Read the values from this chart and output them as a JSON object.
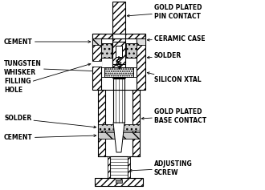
{
  "bg_color": "#ffffff",
  "line_color": "#000000",
  "labels": {
    "cement_top": "CEMENT",
    "gold_plated_pin": "GOLD PLATED\nPIN CONTACT",
    "ceramic_case": "CERAMIC CASE",
    "solder_top": "SOLDER",
    "tungsten_whisker": "TUNGSTEN\nWHISKER",
    "filling_hole": "FILLING\nHOLE",
    "silicon_xtal": "SILICON XTAL",
    "solder_bot": "SOLDER",
    "gold_plated_base": "GOLD PLATED\nBASE CONTACT",
    "cement_bot": "CEMENT",
    "adjusting_screw": "ADJUSTING\nSCREW"
  },
  "font_size": 5.5,
  "fig_width": 3.3,
  "fig_height": 2.37,
  "dpi": 100
}
